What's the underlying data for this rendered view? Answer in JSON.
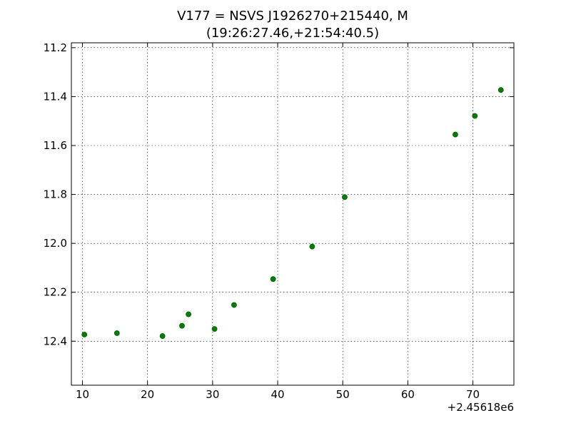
{
  "chart_data": {
    "type": "scatter",
    "title": "V177 = NSVS J1926270+215440, M",
    "subtitle": "(19:26:27.46,+21:54:40.5)",
    "xlabel": "",
    "ylabel": "",
    "x_offset_label": "+2.45618e6",
    "xlim": [
      8.3,
      76.3
    ],
    "ylim": [
      12.58,
      11.18
    ],
    "y_inverted": true,
    "grid": true,
    "marker_color": "#008000",
    "x_ticks": [
      {
        "value": 10,
        "label": "10"
      },
      {
        "value": 20,
        "label": "20"
      },
      {
        "value": 30,
        "label": "30"
      },
      {
        "value": 40,
        "label": "40"
      },
      {
        "value": 50,
        "label": "50"
      },
      {
        "value": 60,
        "label": "60"
      },
      {
        "value": 70,
        "label": "70"
      }
    ],
    "y_ticks": [
      {
        "value": 11.2,
        "label": "11.2"
      },
      {
        "value": 11.4,
        "label": "11.4"
      },
      {
        "value": 11.6,
        "label": "11.6"
      },
      {
        "value": 11.8,
        "label": "11.8"
      },
      {
        "value": 12.0,
        "label": "12.0"
      },
      {
        "value": 12.2,
        "label": "12.2"
      },
      {
        "value": 12.4,
        "label": "12.4"
      }
    ],
    "points": [
      {
        "x": 10.3,
        "y": 12.373
      },
      {
        "x": 15.3,
        "y": 12.367
      },
      {
        "x": 22.3,
        "y": 12.379
      },
      {
        "x": 25.3,
        "y": 12.337
      },
      {
        "x": 26.3,
        "y": 12.29
      },
      {
        "x": 30.3,
        "y": 12.35
      },
      {
        "x": 33.3,
        "y": 12.252
      },
      {
        "x": 39.3,
        "y": 12.146
      },
      {
        "x": 45.3,
        "y": 12.013
      },
      {
        "x": 50.3,
        "y": 11.811
      },
      {
        "x": 67.3,
        "y": 11.555
      },
      {
        "x": 70.3,
        "y": 11.479
      },
      {
        "x": 74.3,
        "y": 11.373
      }
    ]
  }
}
